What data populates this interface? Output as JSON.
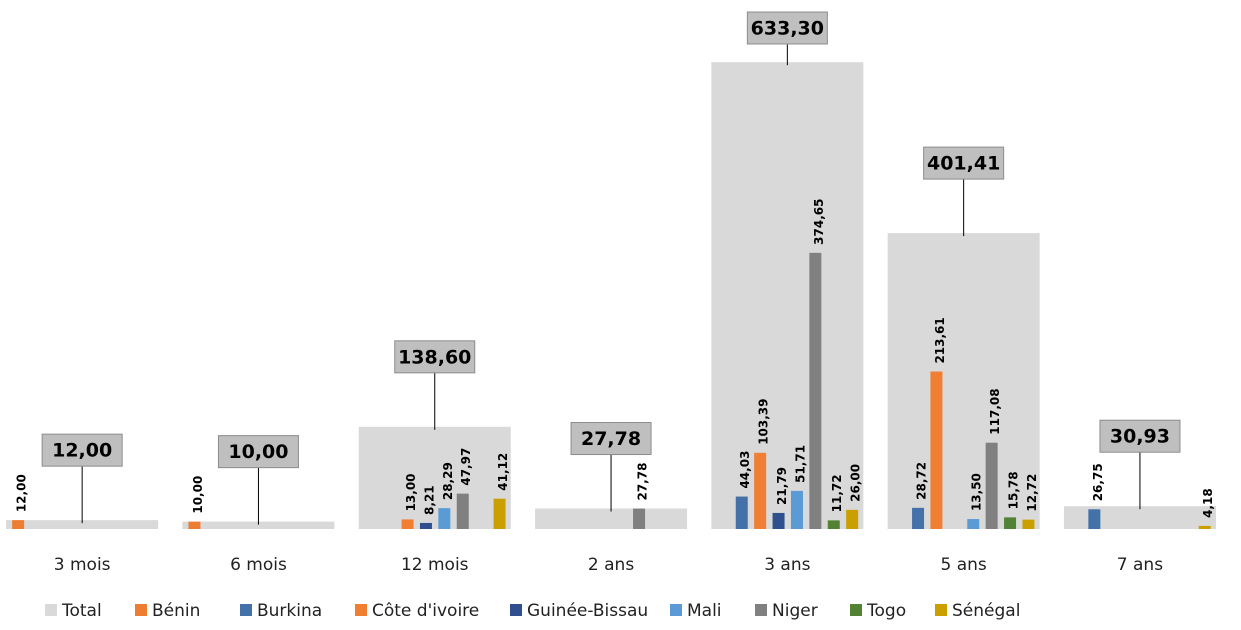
{
  "chart_data": {
    "type": "bar",
    "categories": [
      "3 mois",
      "6 mois",
      "12 mois",
      "2 ans",
      "3 ans",
      "5 ans",
      "7 ans"
    ],
    "ylim": [
      0,
      700
    ],
    "legend": "bottom",
    "series": [
      {
        "name": "Total",
        "color": "#d9d9d9",
        "values": [
          12.0,
          10.0,
          138.6,
          27.78,
          633.3,
          401.41,
          30.93
        ],
        "value_labels": [
          "12,00",
          "10,00",
          "138,60",
          "27,78",
          "633,30",
          "401,41",
          "30,93"
        ]
      },
      {
        "name": "Bénin",
        "color": "#ed7d31",
        "values": [
          12.0,
          10.0,
          null,
          null,
          null,
          null,
          null
        ],
        "value_labels": [
          "12,00",
          "10,00",
          null,
          null,
          null,
          null,
          null
        ]
      },
      {
        "name": "Burkina",
        "color": "#4472a8",
        "values": [
          null,
          null,
          null,
          null,
          44.03,
          28.72,
          26.75
        ],
        "value_labels": [
          null,
          null,
          null,
          null,
          "44,03",
          "28,72",
          "26,75"
        ]
      },
      {
        "name": "Côte d'ivoire",
        "color": "#f07f33",
        "values": [
          null,
          null,
          13.0,
          null,
          103.39,
          213.61,
          null
        ],
        "value_labels": [
          null,
          null,
          "13,00",
          null,
          "103,39",
          "213,61",
          null
        ]
      },
      {
        "name": "Guinée-Bissau",
        "color": "#2f4f8f",
        "values": [
          null,
          null,
          8.21,
          null,
          21.79,
          null,
          null
        ],
        "value_labels": [
          null,
          null,
          "8,21",
          null,
          "21,79",
          null,
          null
        ]
      },
      {
        "name": "Mali",
        "color": "#5b9bd5",
        "values": [
          null,
          null,
          28.29,
          null,
          51.71,
          13.5,
          null
        ],
        "value_labels": [
          null,
          null,
          "28,29",
          null,
          "51,71",
          "13,50",
          null
        ]
      },
      {
        "name": "Niger",
        "color": "#808080",
        "values": [
          null,
          null,
          47.97,
          27.78,
          374.65,
          117.08,
          null
        ],
        "value_labels": [
          null,
          null,
          "47,97",
          "27,78",
          "374,65",
          "117,08",
          null
        ]
      },
      {
        "name": "Togo",
        "color": "#548235",
        "values": [
          null,
          null,
          null,
          null,
          11.72,
          15.78,
          null
        ],
        "value_labels": [
          null,
          null,
          null,
          null,
          "11,72",
          "15,78",
          null
        ]
      },
      {
        "name": "Sénégal",
        "color": "#c9a000",
        "values": [
          null,
          null,
          41.12,
          null,
          26.0,
          12.72,
          4.18
        ],
        "value_labels": [
          null,
          null,
          "41,12",
          null,
          "26,00",
          "12,72",
          "4,18"
        ]
      }
    ]
  }
}
